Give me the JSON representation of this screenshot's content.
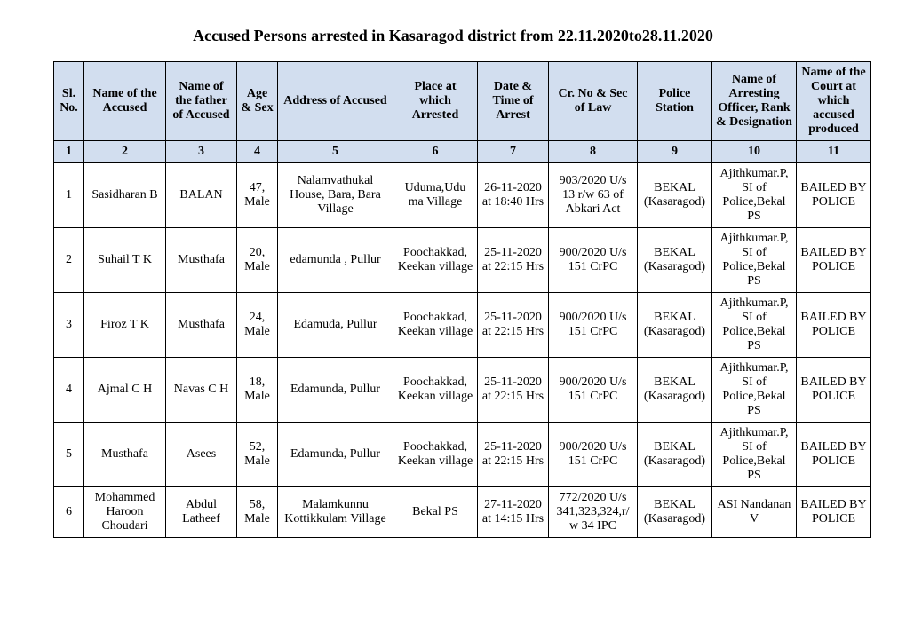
{
  "title": "Accused Persons arrested in   Kasaragod   district from  22.11.2020to28.11.2020",
  "headers": {
    "c1": "Sl. No.",
    "c2": "Name of the Accused",
    "c3": "Name of the father of Accused",
    "c4": "Age & Sex",
    "c5": "Address of Accused",
    "c6": "Place at which Arrested",
    "c7": "Date & Time of Arrest",
    "c8": "Cr. No & Sec of Law",
    "c9": "Police Station",
    "c10": "Name of Arresting Officer, Rank & Designation",
    "c11": "Name of the Court at which accused produced"
  },
  "header_numbers": {
    "c1": "1",
    "c2": "2",
    "c3": "3",
    "c4": "4",
    "c5": "5",
    "c6": "6",
    "c7": "7",
    "c8": "8",
    "c9": "9",
    "c10": "10",
    "c11": "11"
  },
  "rows": [
    {
      "c1": "1",
      "c2": "Sasidharan B",
      "c3": "BALAN",
      "c4": "47, Male",
      "c5": "Nalamvathukal House, Bara, Bara Village",
      "c6": "Uduma,Udu ma Village",
      "c7": "26-11-2020 at 18:40 Hrs",
      "c8": "903/2020 U/s 13 r/w 63 of Abkari Act",
      "c9": "BEKAL (Kasaragod)",
      "c10": "Ajithkumar.P, SI of Police,Bekal PS",
      "c11": "BAILED BY POLICE"
    },
    {
      "c1": "2",
      "c2": "Suhail T K",
      "c3": "Musthafa",
      "c4": "20, Male",
      "c5": "edamunda , Pullur",
      "c6": "Poochakkad, Keekan village",
      "c7": "25-11-2020 at 22:15 Hrs",
      "c8": "900/2020 U/s 151 CrPC",
      "c9": "BEKAL (Kasaragod)",
      "c10": "Ajithkumar.P, SI of Police,Bekal PS",
      "c11": "BAILED BY POLICE"
    },
    {
      "c1": "3",
      "c2": "Firoz T K",
      "c3": "Musthafa",
      "c4": "24, Male",
      "c5": "Edamuda, Pullur",
      "c6": "Poochakkad, Keekan village",
      "c7": "25-11-2020 at 22:15 Hrs",
      "c8": "900/2020 U/s 151 CrPC",
      "c9": "BEKAL (Kasaragod)",
      "c10": "Ajithkumar.P, SI of Police,Bekal PS",
      "c11": "BAILED BY POLICE"
    },
    {
      "c1": "4",
      "c2": "Ajmal C H",
      "c3": "Navas C H",
      "c4": "18, Male",
      "c5": "Edamunda, Pullur",
      "c6": "Poochakkad, Keekan village",
      "c7": "25-11-2020 at 22:15 Hrs",
      "c8": "900/2020 U/s 151 CrPC",
      "c9": "BEKAL (Kasaragod)",
      "c10": "Ajithkumar.P, SI of Police,Bekal PS",
      "c11": "BAILED BY POLICE"
    },
    {
      "c1": "5",
      "c2": "Musthafa",
      "c3": "Asees",
      "c4": "52, Male",
      "c5": "Edamunda, Pullur",
      "c6": "Poochakkad, Keekan village",
      "c7": "25-11-2020 at 22:15 Hrs",
      "c8": "900/2020 U/s 151 CrPC",
      "c9": "BEKAL (Kasaragod)",
      "c10": "Ajithkumar.P, SI of Police,Bekal PS",
      "c11": "BAILED BY POLICE"
    },
    {
      "c1": "6",
      "c2": "Mohammed Haroon Choudari",
      "c3": "Abdul Latheef",
      "c4": "58, Male",
      "c5": "Malamkunnu Kottikkulam Village",
      "c6": "Bekal PS",
      "c7": "27-11-2020 at 14:15 Hrs",
      "c8": "772/2020 U/s 341,323,324,r/w 34 IPC",
      "c9": "BEKAL (Kasaragod)",
      "c10": "ASI Nandanan V",
      "c11": "BAILED BY POLICE"
    }
  ],
  "style": {
    "header_bg": "#d2deef",
    "border_color": "#000000",
    "font_family": "Times New Roman",
    "title_fontsize": 18,
    "cell_fontsize": 14
  }
}
